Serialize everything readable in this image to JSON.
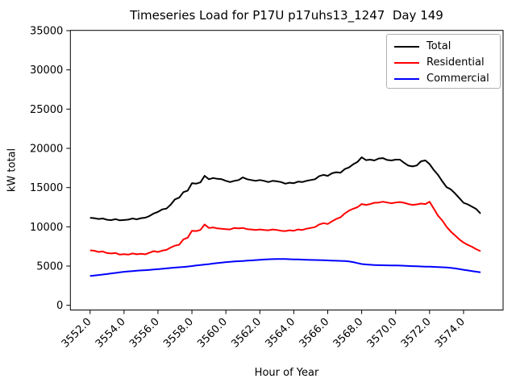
{
  "chart_data": {
    "type": "line",
    "title": "Timeseries Load for P17U p17uhs13_1247  Day 149",
    "xlabel": "Hour of Year",
    "ylabel": "kW total",
    "grid": false,
    "x_start": 3552.0,
    "x_step": 0.25,
    "xlim": [
      3550.84,
      3576.33
    ],
    "ylim": [
      -600,
      35030
    ],
    "y_ticks": [
      0,
      5000,
      10000,
      15000,
      20000,
      25000,
      30000,
      35000
    ],
    "y_tick_labels": [
      "0",
      "5000",
      "10000",
      "15000",
      "20000",
      "25000",
      "30000",
      "35000"
    ],
    "x_ticks": [
      3552,
      3554,
      3556,
      3558,
      3560,
      3562,
      3564,
      3566,
      3568,
      3570,
      3572,
      3574
    ],
    "x_tick_labels": [
      "3552.0",
      "3554.0",
      "3556.0",
      "3558.0",
      "3560.0",
      "3562.0",
      "3564.0",
      "3566.0",
      "3568.0",
      "3570.0",
      "3572.0",
      "3574.0"
    ],
    "legend": {
      "position": "upper right"
    },
    "series": [
      {
        "name": "Total",
        "color": "#000000",
        "values": [
          11150,
          11100,
          11000,
          11060,
          10900,
          10860,
          10980,
          10820,
          10870,
          10920,
          11060,
          10960,
          11100,
          11160,
          11380,
          11700,
          11900,
          12220,
          12320,
          12820,
          13500,
          13720,
          14420,
          14620,
          15560,
          15500,
          15660,
          16500,
          16060,
          16220,
          16120,
          16060,
          15860,
          15700,
          15860,
          15960,
          16300,
          16060,
          15960,
          15860,
          15960,
          15860,
          15700,
          15860,
          15800,
          15700,
          15500,
          15620,
          15560,
          15760,
          15700,
          15860,
          15960,
          16060,
          16460,
          16620,
          16500,
          16820,
          16960,
          16900,
          17360,
          17560,
          17960,
          18260,
          18860,
          18500,
          18560,
          18460,
          18700,
          18760,
          18520,
          18460,
          18560,
          18560,
          18160,
          17800,
          17700,
          17820,
          18360,
          18460,
          18000,
          17240,
          16600,
          15800,
          15060,
          14780,
          14260,
          13660,
          13060,
          12860,
          12560,
          12260,
          11700
        ]
      },
      {
        "name": "Residential",
        "color": "#ff0000",
        "values": [
          7000,
          6950,
          6800,
          6860,
          6650,
          6600,
          6660,
          6460,
          6520,
          6460,
          6600,
          6500,
          6560,
          6500,
          6700,
          6900,
          6800,
          6960,
          7060,
          7360,
          7600,
          7720,
          8400,
          8620,
          9500,
          9460,
          9600,
          10300,
          9860,
          9920,
          9800,
          9760,
          9700,
          9660,
          9860,
          9800,
          9860,
          9700,
          9660,
          9600,
          9660,
          9600,
          9560,
          9660,
          9600,
          9500,
          9460,
          9560,
          9500,
          9660,
          9600,
          9760,
          9860,
          9960,
          10300,
          10460,
          10360,
          10700,
          11000,
          11200,
          11700,
          12060,
          12300,
          12500,
          12900,
          12800,
          12900,
          13060,
          13100,
          13200,
          13100,
          13000,
          13100,
          13160,
          13060,
          12900,
          12800,
          12860,
          12960,
          12900,
          13200,
          12300,
          11400,
          10800,
          10000,
          9400,
          8900,
          8400,
          8000,
          7700,
          7450,
          7150,
          6900
        ]
      },
      {
        "name": "Commercial",
        "color": "#0000ff",
        "values": [
          3750,
          3800,
          3860,
          3920,
          3980,
          4060,
          4130,
          4200,
          4270,
          4320,
          4360,
          4400,
          4440,
          4480,
          4520,
          4560,
          4600,
          4650,
          4700,
          4750,
          4800,
          4850,
          4890,
          4940,
          5000,
          5070,
          5130,
          5190,
          5250,
          5320,
          5380,
          5440,
          5500,
          5540,
          5580,
          5620,
          5650,
          5690,
          5720,
          5760,
          5800,
          5830,
          5860,
          5880,
          5900,
          5900,
          5890,
          5870,
          5850,
          5840,
          5820,
          5800,
          5780,
          5770,
          5760,
          5740,
          5720,
          5700,
          5680,
          5660,
          5640,
          5590,
          5500,
          5380,
          5260,
          5200,
          5160,
          5130,
          5110,
          5100,
          5090,
          5080,
          5080,
          5060,
          5040,
          5010,
          4990,
          4970,
          4950,
          4930,
          4920,
          4900,
          4880,
          4850,
          4810,
          4760,
          4700,
          4620,
          4530,
          4440,
          4360,
          4280,
          4200
        ]
      }
    ]
  }
}
